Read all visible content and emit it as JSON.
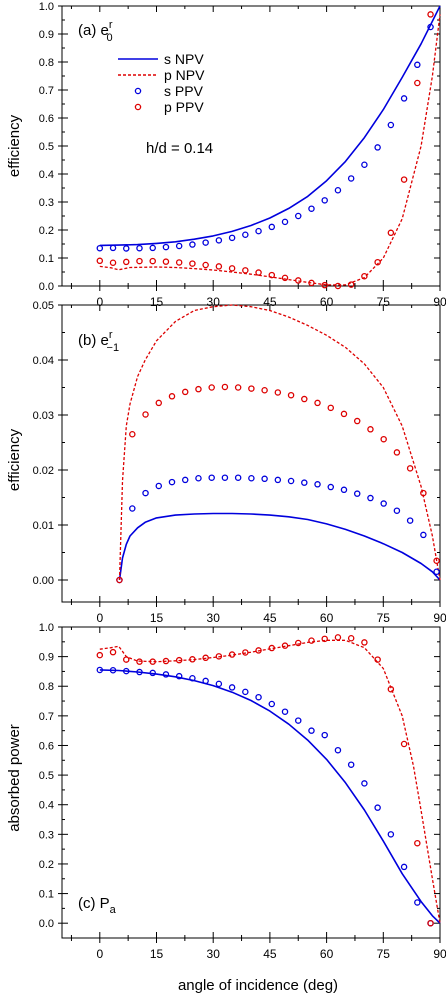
{
  "figure": {
    "xlabel": "angle of incidence (deg)",
    "xticks": [
      "0",
      "15",
      "30",
      "45",
      "60",
      "75",
      "90"
    ],
    "legend": [
      {
        "label": "s NPV",
        "kind": "line",
        "color": "#0000dd"
      },
      {
        "label": "p NPV",
        "kind": "dashed",
        "color": "#dd0000"
      },
      {
        "label": "s PPV",
        "kind": "marker",
        "color": "#0000dd"
      },
      {
        "label": "p PPV",
        "kind": "marker",
        "color": "#dd0000"
      }
    ],
    "param_text": "h/d = 0.14"
  },
  "chart_data": [
    {
      "type": "line",
      "panel_label": "(a)  e",
      "panel_sup": "r",
      "panel_sub": "0",
      "ylabel": "efficiency",
      "xlim": [
        -10,
        90
      ],
      "ylim": [
        0,
        1.0
      ],
      "yticks": [
        "0.0",
        "0.1",
        "0.2",
        "0.3",
        "0.4",
        "0.5",
        "0.6",
        "0.7",
        "0.8",
        "0.9",
        "1.0"
      ],
      "series": [
        {
          "name": "s NPV",
          "style": "solid",
          "color": "#0000dd",
          "x": [
            0,
            5,
            10,
            15,
            20,
            25,
            30,
            35,
            40,
            45,
            50,
            55,
            60,
            65,
            70,
            75,
            80,
            85,
            90
          ],
          "y": [
            0.145,
            0.146,
            0.148,
            0.152,
            0.158,
            0.167,
            0.179,
            0.195,
            0.216,
            0.243,
            0.277,
            0.32,
            0.376,
            0.445,
            0.53,
            0.63,
            0.745,
            0.865,
            1.0
          ]
        },
        {
          "name": "p NPV",
          "style": "dashed",
          "color": "#dd0000",
          "x": [
            0,
            3,
            5,
            8,
            15,
            20,
            25,
            30,
            35,
            40,
            45,
            50,
            55,
            60,
            65,
            70,
            75,
            80,
            85,
            88,
            90
          ],
          "y": [
            0.07,
            0.065,
            0.058,
            0.066,
            0.068,
            0.066,
            0.062,
            0.057,
            0.05,
            0.042,
            0.033,
            0.023,
            0.013,
            0.004,
            0.004,
            0.03,
            0.1,
            0.24,
            0.5,
            0.75,
            0.97
          ]
        },
        {
          "name": "s PPV",
          "style": "marker",
          "color": "#0000dd",
          "x": [
            0,
            3.5,
            7,
            10.5,
            14,
            17.5,
            21,
            24.5,
            28,
            31.5,
            35,
            38.5,
            42,
            45.5,
            49,
            52.5,
            56,
            59.5,
            63,
            66.5,
            70,
            73.5,
            77,
            80.5,
            84,
            87.5
          ],
          "y": [
            0.135,
            0.136,
            0.134,
            0.135,
            0.136,
            0.139,
            0.143,
            0.148,
            0.155,
            0.163,
            0.172,
            0.183,
            0.196,
            0.211,
            0.229,
            0.25,
            0.276,
            0.306,
            0.342,
            0.384,
            0.433,
            0.495,
            0.575,
            0.67,
            0.79,
            0.925
          ]
        },
        {
          "name": "p PPV",
          "style": "marker",
          "color": "#dd0000",
          "x": [
            0,
            3.5,
            7,
            10.5,
            14,
            17.5,
            21,
            24.5,
            28,
            31.5,
            35,
            38.5,
            42,
            45.5,
            49,
            52.5,
            56,
            59.5,
            63,
            66.5,
            70,
            73.5,
            77,
            80.5,
            84,
            87.5
          ],
          "y": [
            0.09,
            0.083,
            0.086,
            0.089,
            0.089,
            0.087,
            0.084,
            0.08,
            0.075,
            0.07,
            0.063,
            0.056,
            0.048,
            0.039,
            0.029,
            0.02,
            0.011,
            0.003,
            0.0,
            0.005,
            0.035,
            0.085,
            0.19,
            0.38,
            0.725,
            0.97
          ]
        }
      ]
    },
    {
      "type": "line",
      "panel_label": "(b)  e",
      "panel_sup": "r",
      "panel_sub": "−1",
      "ylabel": "efficiency",
      "xlim": [
        -10,
        90
      ],
      "ylim": [
        -0.004,
        0.05
      ],
      "yticks": [
        "0.00",
        "0.01",
        "0.02",
        "0.03",
        "0.04",
        "0.05"
      ],
      "series": [
        {
          "name": "s NPV",
          "style": "solid",
          "color": "#0000dd",
          "x": [
            5.2,
            6,
            7,
            8,
            10,
            12,
            15,
            20,
            25,
            30,
            35,
            40,
            45,
            50,
            55,
            60,
            65,
            70,
            75,
            80,
            85,
            88,
            90
          ],
          "y": [
            0.0,
            0.004,
            0.0065,
            0.008,
            0.0095,
            0.0105,
            0.0113,
            0.0118,
            0.012,
            0.0121,
            0.0121,
            0.012,
            0.0118,
            0.0115,
            0.011,
            0.0102,
            0.0092,
            0.008,
            0.0066,
            0.005,
            0.003,
            0.0015,
            0.0
          ]
        },
        {
          "name": "p NPV",
          "style": "dashed",
          "color": "#dd0000",
          "x": [
            5.2,
            6,
            7,
            8,
            10,
            12,
            15,
            20,
            25,
            30,
            35,
            40,
            45,
            50,
            55,
            60,
            65,
            70,
            75,
            80,
            85,
            88,
            90
          ],
          "y": [
            0.0,
            0.018,
            0.028,
            0.032,
            0.037,
            0.04,
            0.0435,
            0.047,
            0.049,
            0.0497,
            0.05,
            0.0497,
            0.049,
            0.0478,
            0.0463,
            0.0445,
            0.0423,
            0.0393,
            0.035,
            0.028,
            0.017,
            0.008,
            0.0
          ]
        },
        {
          "name": "s PPV",
          "style": "marker",
          "color": "#0000dd",
          "x": [
            5.2,
            8.6,
            12.1,
            15.6,
            19.1,
            22.6,
            26.1,
            29.6,
            33.1,
            36.6,
            40.1,
            43.6,
            47.1,
            50.6,
            54.1,
            57.6,
            61.1,
            64.6,
            68.1,
            71.6,
            75.1,
            78.6,
            82.1,
            85.6,
            89.1
          ],
          "y": [
            0.0,
            0.013,
            0.0158,
            0.0171,
            0.0178,
            0.0182,
            0.0185,
            0.0186,
            0.0186,
            0.0186,
            0.0185,
            0.0184,
            0.0182,
            0.018,
            0.0177,
            0.0174,
            0.0169,
            0.0164,
            0.0157,
            0.0149,
            0.0139,
            0.0126,
            0.0108,
            0.0082,
            0.0015
          ]
        },
        {
          "name": "p PPV",
          "style": "marker",
          "color": "#dd0000",
          "x": [
            5.2,
            8.6,
            12.1,
            15.6,
            19.1,
            22.6,
            26.1,
            29.6,
            33.1,
            36.6,
            40.1,
            43.6,
            47.1,
            50.6,
            54.1,
            57.6,
            61.1,
            64.6,
            68.1,
            71.6,
            75.1,
            78.6,
            82.1,
            85.6,
            89.1
          ],
          "y": [
            0.0,
            0.0265,
            0.0301,
            0.0322,
            0.0334,
            0.0342,
            0.0347,
            0.035,
            0.0351,
            0.035,
            0.0348,
            0.0345,
            0.0341,
            0.0336,
            0.0329,
            0.0322,
            0.0313,
            0.0302,
            0.0289,
            0.0274,
            0.0256,
            0.0232,
            0.0203,
            0.0158,
            0.0035
          ]
        }
      ]
    },
    {
      "type": "line",
      "panel_label": "(c)  P",
      "panel_sup": "",
      "panel_sub": "a",
      "ylabel": "absorbed power",
      "xlim": [
        -10,
        90
      ],
      "ylim": [
        -0.05,
        1.0
      ],
      "yticks": [
        "0.0",
        "0.1",
        "0.2",
        "0.3",
        "0.4",
        "0.5",
        "0.6",
        "0.7",
        "0.8",
        "0.9",
        "1.0"
      ],
      "series": [
        {
          "name": "s NPV",
          "style": "solid",
          "color": "#0000dd",
          "x": [
            0,
            5,
            10,
            15,
            20,
            25,
            30,
            35,
            40,
            45,
            50,
            55,
            60,
            65,
            70,
            75,
            80,
            85,
            88,
            90
          ],
          "y": [
            0.855,
            0.853,
            0.848,
            0.841,
            0.832,
            0.819,
            0.802,
            0.78,
            0.752,
            0.716,
            0.672,
            0.618,
            0.553,
            0.474,
            0.382,
            0.277,
            0.167,
            0.073,
            0.025,
            0.0
          ]
        },
        {
          "name": "p NPV",
          "style": "dashed",
          "color": "#dd0000",
          "x": [
            0,
            3,
            5,
            7,
            10,
            15,
            20,
            25,
            30,
            35,
            40,
            45,
            50,
            55,
            60,
            65,
            70,
            75,
            80,
            83,
            85,
            88,
            90
          ],
          "y": [
            0.925,
            0.93,
            0.935,
            0.9,
            0.885,
            0.883,
            0.886,
            0.89,
            0.897,
            0.905,
            0.915,
            0.926,
            0.937,
            0.948,
            0.955,
            0.955,
            0.93,
            0.86,
            0.7,
            0.53,
            0.38,
            0.15,
            0.0
          ]
        },
        {
          "name": "s PPV",
          "style": "marker",
          "color": "#0000dd",
          "x": [
            0,
            3.5,
            7,
            10.5,
            14,
            17.5,
            21,
            24.5,
            28,
            31.5,
            35,
            38.5,
            42,
            45.5,
            49,
            52.5,
            56,
            59.5,
            63,
            66.5,
            70,
            73.5,
            77,
            80.5,
            84,
            87.5
          ],
          "y": [
            0.855,
            0.854,
            0.851,
            0.848,
            0.845,
            0.84,
            0.834,
            0.827,
            0.818,
            0.808,
            0.796,
            0.781,
            0.763,
            0.74,
            0.714,
            0.684,
            0.65,
            0.635,
            0.584,
            0.535,
            0.472,
            0.39,
            0.3,
            0.19,
            0.07,
            0.0
          ]
        },
        {
          "name": "p PPV",
          "style": "marker",
          "color": "#dd0000",
          "x": [
            0,
            3.5,
            7,
            10.5,
            14,
            17.5,
            21,
            24.5,
            28,
            31.5,
            35,
            38.5,
            42,
            45.5,
            49,
            52.5,
            56,
            59.5,
            63,
            66.5,
            70,
            73.5,
            77,
            80.5,
            84,
            87.5
          ],
          "y": [
            0.905,
            0.915,
            0.89,
            0.883,
            0.883,
            0.885,
            0.888,
            0.891,
            0.896,
            0.901,
            0.907,
            0.914,
            0.921,
            0.929,
            0.937,
            0.946,
            0.954,
            0.96,
            0.965,
            0.962,
            0.948,
            0.89,
            0.79,
            0.605,
            0.27,
            0.0
          ]
        }
      ]
    }
  ]
}
